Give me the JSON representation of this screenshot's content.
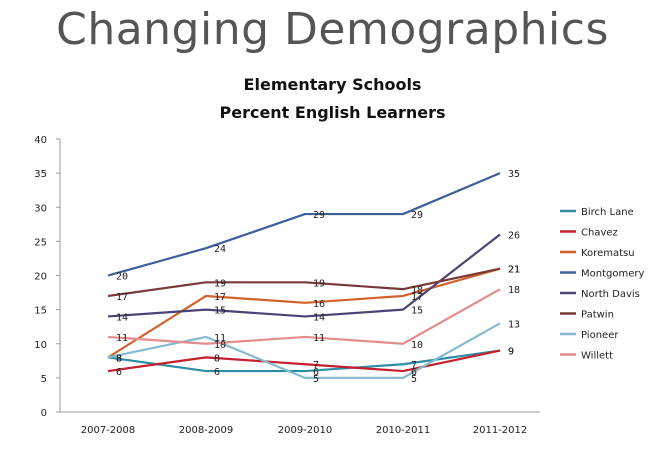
{
  "title": "Changing Demographics",
  "subtitle_line1": "Elementary Schools",
  "subtitle_line2": "Percent English Learners",
  "chart_data": {
    "type": "line",
    "categories": [
      "2007-2008",
      "2008-2009",
      "2009-2010",
      "2010-2011",
      "2011-2012"
    ],
    "ylim": [
      0,
      40
    ],
    "yticks": [
      0,
      5,
      10,
      15,
      20,
      25,
      30,
      35,
      40
    ],
    "grid": false,
    "legend_position": "right",
    "series": [
      {
        "name": "Birch Lane",
        "color": "#2e8ea6",
        "values": [
          8,
          6,
          6,
          7,
          9
        ]
      },
      {
        "name": "Chavez",
        "color": "#c4202e",
        "values": [
          6,
          8,
          7,
          6,
          9
        ]
      },
      {
        "name": "Korematsu",
        "color": "#d2622a",
        "values": [
          8,
          17,
          16,
          17,
          21
        ]
      },
      {
        "name": "Montgomery",
        "color": "#3d5f9a",
        "values": [
          20,
          24,
          29,
          29,
          35
        ]
      },
      {
        "name": "North Davis",
        "color": "#4a4575",
        "values": [
          14,
          15,
          14,
          15,
          26
        ]
      },
      {
        "name": "Patwin",
        "color": "#7a3838",
        "values": [
          17,
          19,
          19,
          18,
          21
        ]
      },
      {
        "name": "Pioneer",
        "color": "#86bbcf",
        "values": [
          8,
          11,
          5,
          5,
          13
        ]
      },
      {
        "name": "Willett",
        "color": "#e28c8c",
        "values": [
          11,
          10,
          11,
          10,
          18
        ]
      }
    ]
  }
}
